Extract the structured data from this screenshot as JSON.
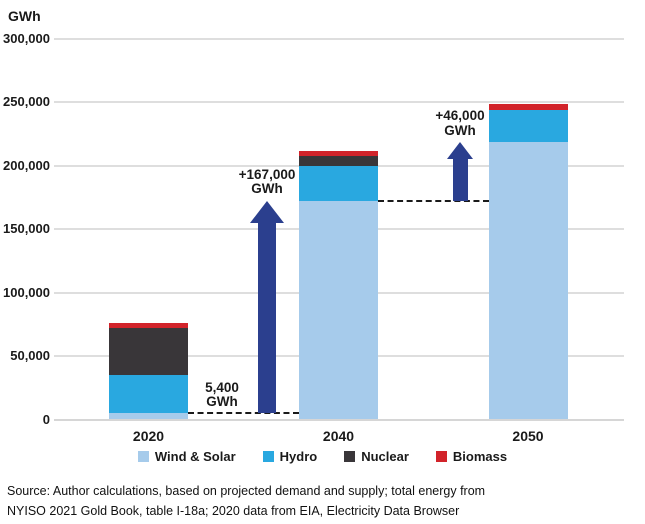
{
  "unit_label": "GWh",
  "chart_data": {
    "type": "bar",
    "stacked": true,
    "title": "",
    "xlabel": "",
    "ylabel": "GWh",
    "ylim": [
      0,
      300000
    ],
    "ytick_step": 50000,
    "yticks": [
      {
        "value": 0,
        "label": "0"
      },
      {
        "value": 50000,
        "label": "50,000"
      },
      {
        "value": 100000,
        "label": "100,000"
      },
      {
        "value": 150000,
        "label": "150,000"
      },
      {
        "value": 200000,
        "label": "200,000"
      },
      {
        "value": 250000,
        "label": "250,000"
      },
      {
        "value": 300000,
        "label": "300,000"
      }
    ],
    "categories": [
      "2020",
      "2040",
      "2050"
    ],
    "series": [
      {
        "name": "Wind & Solar",
        "color": "#A6CBEB",
        "values": [
          5400,
          172400,
          218400
        ]
      },
      {
        "name": "Hydro",
        "color": "#29A8E0",
        "values": [
          29600,
          27600,
          26000
        ]
      },
      {
        "name": "Nuclear",
        "color": "#393639",
        "values": [
          37000,
          8000,
          0
        ]
      },
      {
        "name": "Biomass",
        "color": "#D2232A",
        "values": [
          4000,
          4000,
          4000
        ]
      }
    ],
    "grid": true,
    "legend_position": "bottom"
  },
  "annotations": {
    "arrow_color": "#2B3F8E",
    "baseline_label": {
      "line1": "5,400",
      "line2": "GWh",
      "value": 5400
    },
    "dash1": {
      "value": 5400,
      "from_category": "2020",
      "to_category": "2040"
    },
    "dash2": {
      "value": 172400,
      "from_category": "2040",
      "to_category": "2050"
    },
    "arrow1": {
      "line1": "+167,000",
      "line2": "GWh",
      "from_value": 5400,
      "to_value": 172400
    },
    "arrow2": {
      "line1": "+46,000",
      "line2": "GWh",
      "from_value": 172400,
      "to_value": 218400
    }
  },
  "source": {
    "line1": "Source: Author calculations, based on projected demand and supply; total energy from",
    "line2": "NYISO 2021 Gold Book, table I-18a; 2020 data from EIA, Electricity Data Browser"
  }
}
